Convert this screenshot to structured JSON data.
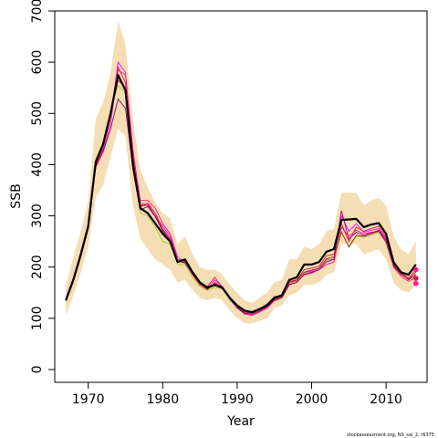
{
  "chart_data": {
    "type": "line",
    "title": "",
    "xlabel": "Year",
    "ylabel": "SSB",
    "xlim": [
      1965.5,
      2015.5
    ],
    "ylim": [
      -25,
      700
    ],
    "xticks": [
      1970,
      1980,
      1990,
      2000,
      2010
    ],
    "yticks": [
      0,
      100,
      200,
      300,
      400,
      500,
      600,
      700
    ],
    "grid": false,
    "legend": "none",
    "credit": "stockassessment.org, NS_sai_2, r6375",
    "colors": {
      "band": "#f5deb3",
      "estimate": "#000000",
      "retro": [
        "#ff00ff",
        "#ff1493",
        "#dc143c",
        "#9acd32",
        "#8b008b",
        "#b22222"
      ]
    },
    "x": [
      1967,
      1968,
      1969,
      1970,
      1971,
      1972,
      1973,
      1974,
      1975,
      1976,
      1977,
      1978,
      1979,
      1980,
      1981,
      1982,
      1983,
      1984,
      1985,
      1986,
      1987,
      1988,
      1989,
      1990,
      1991,
      1992,
      1993,
      1994,
      1995,
      1996,
      1997,
      1998,
      1999,
      2000,
      2001,
      2002,
      2003,
      2004,
      2005,
      2006,
      2007,
      2008,
      2009,
      2010,
      2011,
      2012,
      2013,
      2014
    ],
    "estimate": [
      135,
      175,
      225,
      280,
      405,
      440,
      500,
      575,
      545,
      400,
      315,
      305,
      285,
      265,
      250,
      210,
      215,
      190,
      170,
      160,
      165,
      160,
      140,
      125,
      115,
      112,
      118,
      125,
      140,
      145,
      175,
      180,
      205,
      205,
      210,
      230,
      235,
      292,
      293,
      294,
      278,
      283,
      286,
      265,
      210,
      190,
      185,
      205
    ],
    "band_upper": [
      165,
      220,
      270,
      330,
      490,
      520,
      580,
      680,
      635,
      490,
      390,
      355,
      325,
      305,
      295,
      245,
      260,
      225,
      200,
      195,
      195,
      185,
      165,
      150,
      135,
      130,
      140,
      150,
      170,
      175,
      215,
      215,
      240,
      235,
      245,
      270,
      275,
      345,
      345,
      345,
      320,
      330,
      335,
      320,
      260,
      235,
      225,
      250
    ],
    "band_lower": [
      105,
      145,
      190,
      240,
      335,
      360,
      415,
      470,
      455,
      320,
      255,
      235,
      215,
      205,
      195,
      170,
      175,
      155,
      140,
      135,
      140,
      135,
      115,
      100,
      90,
      90,
      95,
      100,
      120,
      125,
      145,
      150,
      165,
      165,
      170,
      185,
      190,
      245,
      245,
      245,
      225,
      230,
      235,
      215,
      170,
      155,
      150,
      165
    ],
    "series": [
      {
        "values": [
          138,
          178,
          228,
          283,
          395,
          432,
          492,
          600,
          580,
          430,
          325,
          320,
          300,
          280,
          260,
          215,
          212,
          188,
          168,
          158,
          175,
          162,
          142,
          124,
          114,
          110,
          115,
          122,
          138,
          142,
          168,
          172,
          190,
          192,
          198,
          215,
          215,
          300,
          270,
          285,
          268,
          272,
          275,
          255,
          205,
          185,
          null,
          null
        ]
      },
      {
        "values": [
          140,
          180,
          226,
          282,
          400,
          428,
          480,
          585,
          575,
          425,
          330,
          330,
          315,
          285,
          265,
          220,
          210,
          185,
          165,
          160,
          168,
          158,
          138,
          120,
          108,
          106,
          112,
          120,
          134,
          140,
          165,
          170,
          185,
          188,
          195,
          205,
          210,
          278,
          260,
          272,
          265,
          268,
          270,
          250,
          200,
          182,
          172,
          180
        ]
      },
      {
        "values": [
          136,
          176,
          230,
          278,
          398,
          435,
          495,
          590,
          560,
          415,
          320,
          325,
          305,
          275,
          255,
          212,
          208,
          190,
          170,
          162,
          180,
          160,
          140,
          122,
          110,
          108,
          118,
          128,
          142,
          145,
          172,
          175,
          195,
          198,
          202,
          222,
          225,
          285,
          250,
          278,
          270,
          275,
          280,
          258,
          210,
          190,
          178,
          195
        ]
      },
      {
        "values": [
          137,
          177,
          224,
          285,
          410,
          445,
          505,
          555,
          540,
          395,
          305,
          300,
          278,
          250,
          245,
          205,
          205,
          180,
          162,
          155,
          160,
          158,
          135,
          122,
          112,
          110,
          116,
          124,
          136,
          142,
          168,
          172,
          188,
          190,
          196,
          212,
          218,
          270,
          238,
          260,
          258,
          262,
          268,
          250,
          null,
          null,
          null,
          null
        ]
      },
      {
        "values": [
          135,
          172,
          220,
          275,
          395,
          425,
          470,
          528,
          510,
          390,
          312,
          318,
          298,
          270,
          250,
          212,
          208,
          186,
          168,
          158,
          165,
          158,
          138,
          120,
          110,
          108,
          114,
          122,
          136,
          140,
          166,
          170,
          186,
          190,
          195,
          210,
          215,
          310,
          255,
          268,
          262,
          266,
          272,
          252,
          205,
          188,
          175,
          185
        ]
      },
      {
        "values": [
          134,
          174,
          222,
          280,
          402,
          438,
          498,
          565,
          550,
          405,
          318,
          322,
          300,
          272,
          252,
          210,
          210,
          186,
          166,
          156,
          170,
          160,
          140,
          122,
          112,
          110,
          116,
          124,
          138,
          142,
          170,
          174,
          190,
          194,
          198,
          216,
          220,
          268,
          240,
          262,
          260,
          265,
          270,
          248,
          202,
          186,
          176,
          190
        ]
      }
    ],
    "retro_endpoints": [
      {
        "x": 2014,
        "y": 195
      },
      {
        "x": 2014,
        "y": 178
      },
      {
        "x": 2014,
        "y": 168
      }
    ]
  }
}
